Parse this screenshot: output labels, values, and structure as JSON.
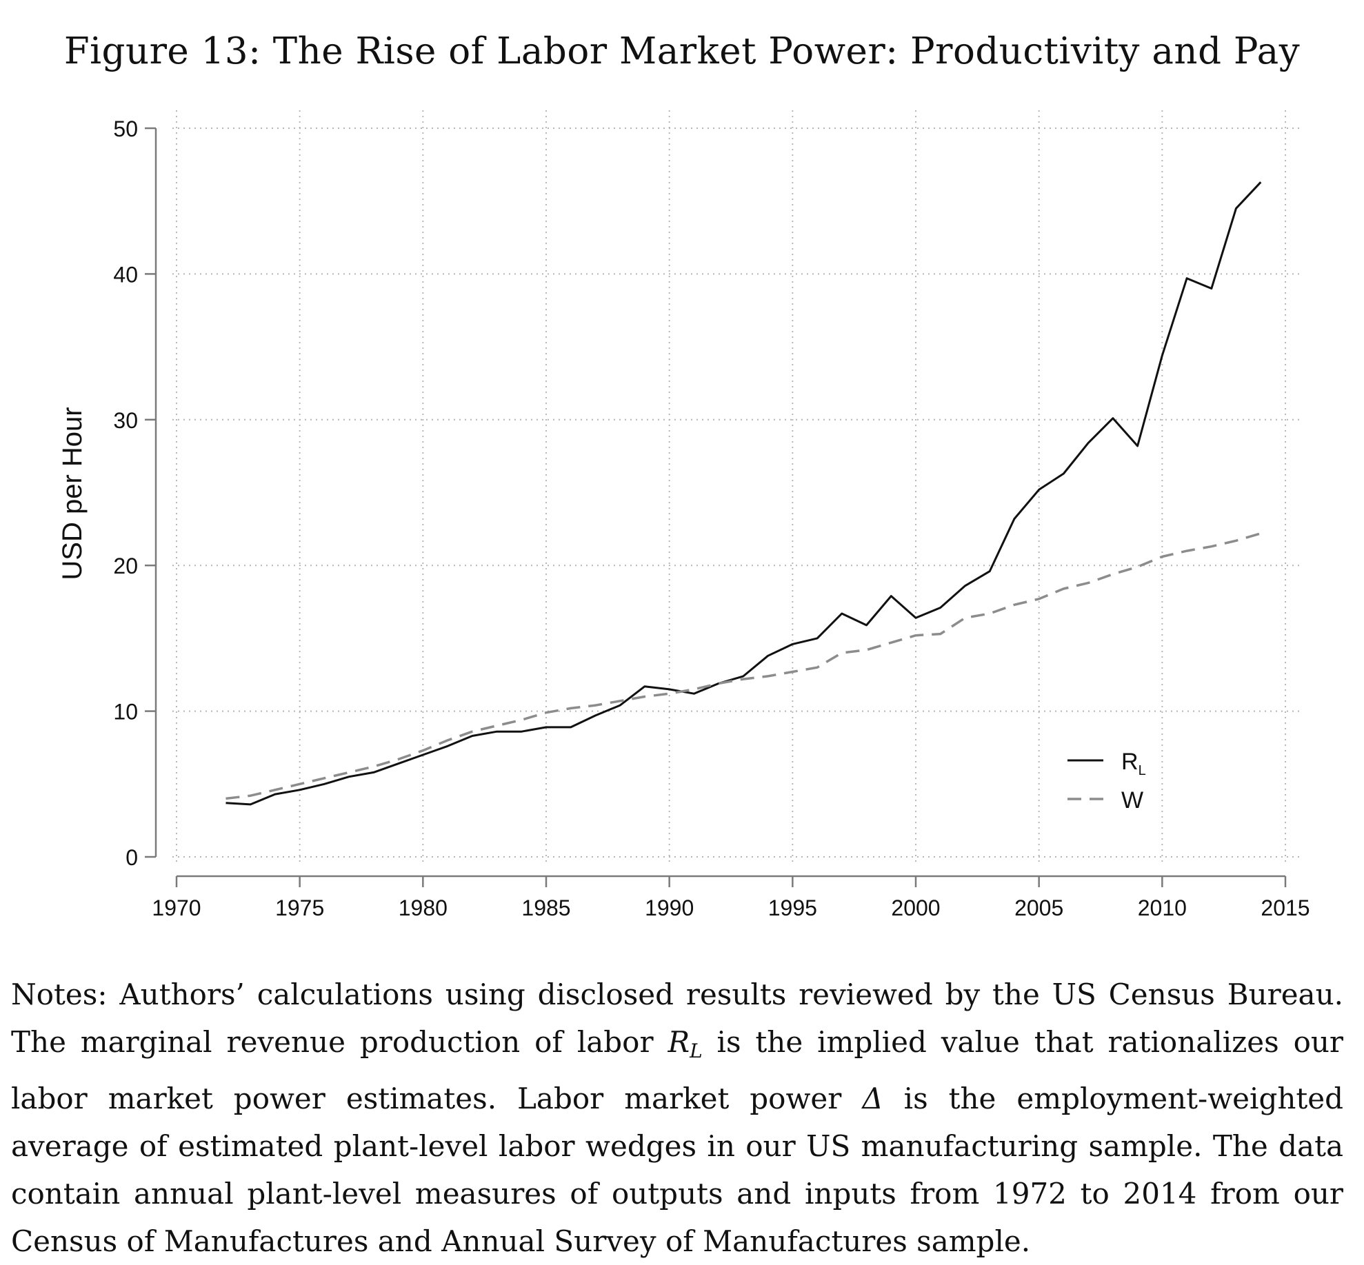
{
  "figure": {
    "title": "Figure 13: The Rise of Labor Market Power: Productivity and Pay"
  },
  "chart_data": {
    "type": "line",
    "ylabel": "USD per Hour",
    "xlabel": "",
    "xlim": [
      1970,
      2015
    ],
    "ylim": [
      0,
      50
    ],
    "x_ticks": [
      1970,
      1975,
      1980,
      1985,
      1990,
      1995,
      2000,
      2005,
      2010,
      2015
    ],
    "y_ticks": [
      0,
      10,
      20,
      30,
      40,
      50
    ],
    "grid": true,
    "legend_position": "bottom-right",
    "x": [
      1972,
      1973,
      1974,
      1975,
      1976,
      1977,
      1978,
      1979,
      1980,
      1981,
      1982,
      1983,
      1984,
      1985,
      1986,
      1987,
      1988,
      1989,
      1990,
      1991,
      1992,
      1993,
      1994,
      1995,
      1996,
      1997,
      1998,
      1999,
      2000,
      2001,
      2002,
      2003,
      2004,
      2005,
      2006,
      2007,
      2008,
      2009,
      2010,
      2011,
      2012,
      2013,
      2014
    ],
    "series": [
      {
        "name_main": "R",
        "name_sub": "L",
        "color": "#111111",
        "style": "solid",
        "values": [
          3.7,
          3.6,
          4.3,
          4.6,
          5.0,
          5.5,
          5.8,
          6.4,
          7.0,
          7.6,
          8.3,
          8.6,
          8.6,
          8.9,
          8.9,
          9.7,
          10.4,
          11.7,
          11.5,
          11.2,
          11.9,
          12.4,
          13.8,
          14.6,
          15.0,
          16.7,
          15.9,
          17.9,
          16.4,
          17.1,
          18.6,
          19.6,
          23.2,
          25.2,
          26.3,
          28.4,
          30.1,
          28.2,
          34.4,
          39.7,
          39.0,
          44.5,
          46.3
        ]
      },
      {
        "name_main": "W",
        "name_sub": "",
        "color": "#8c8c8c",
        "style": "dashed",
        "values": [
          4.0,
          4.2,
          4.6,
          5.0,
          5.4,
          5.8,
          6.2,
          6.7,
          7.3,
          8.0,
          8.6,
          9.0,
          9.4,
          9.9,
          10.2,
          10.4,
          10.7,
          11.0,
          11.2,
          11.5,
          11.9,
          12.2,
          12.4,
          12.7,
          13.0,
          14.0,
          14.2,
          14.7,
          15.2,
          15.3,
          16.4,
          16.7,
          17.3,
          17.7,
          18.4,
          18.8,
          19.4,
          19.9,
          20.6,
          21.0,
          21.3,
          21.7,
          22.2
        ]
      }
    ]
  },
  "notes": {
    "p1": "Notes: Authors’ calculations using disclosed results reviewed by the US Census Bureau. The marginal revenue production of labor ",
    "rl_main": "R",
    "rl_sub": "L",
    "p2": " is the implied value that rationalizes our labor market power estimates. Labor market power ",
    "delta": "Δ",
    "p3": " is the employment-weighted average of estimated plant-level labor wedges in our US manufacturing sample. The data contain annual plant-level measures of outputs and inputs from 1972 to 2014 from our Census of Manufactures and Annual Survey of Manufactures sample."
  }
}
